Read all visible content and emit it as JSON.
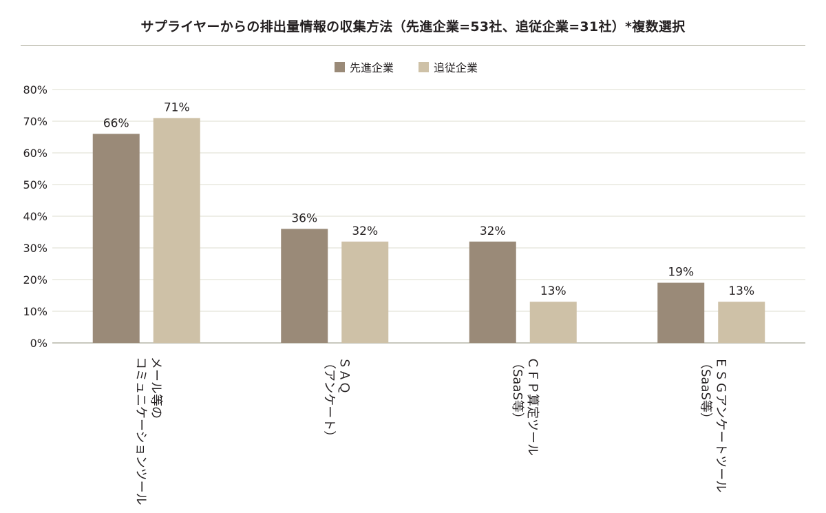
{
  "chart_data": {
    "type": "bar",
    "title": "サプライヤーからの排出量情報の収集方法（先進企業=53社、追従企業=31社）*複数選択",
    "categories": [
      [
        "メール等の",
        "コミュニケーションツール"
      ],
      [
        "ＳＡＱ",
        "（アンケート）"
      ],
      [
        "ＣＦＰ算定ツール",
        "（SaaS等）"
      ],
      [
        "ＥＳＧアンケートツール",
        "（SaaS等）"
      ]
    ],
    "series": [
      {
        "name": "先進企業",
        "color": "#9a8a78",
        "values": [
          66,
          36,
          32,
          19
        ]
      },
      {
        "name": "追従企業",
        "color": "#cec1a7",
        "values": [
          71,
          32,
          13,
          13
        ]
      }
    ],
    "value_suffix": "%",
    "ylim": [
      0,
      80
    ],
    "yticks": [
      "0%",
      "10%",
      "20%",
      "30%",
      "40%",
      "50%",
      "60%",
      "70%",
      "80%"
    ],
    "grid": true,
    "legend_position": "top-center"
  }
}
